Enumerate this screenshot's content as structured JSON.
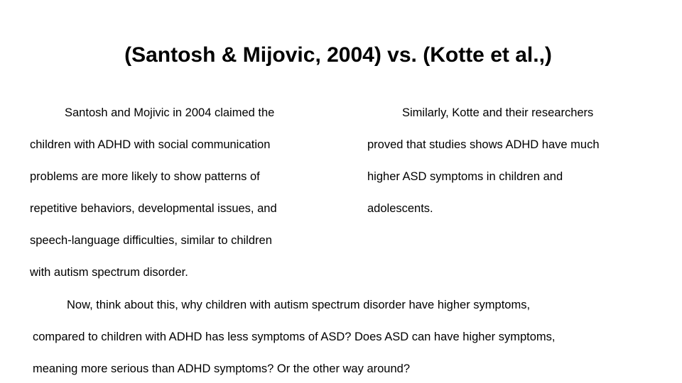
{
  "slide": {
    "title": "(Santosh & Mijovic, 2004) vs. (Kotte et al.,)",
    "left_column": {
      "lines": [
        "Santosh and Mojivic in 2004 claimed the",
        "children with ADHD with social communication",
        "problems are more likely to show patterns of",
        "repetitive behaviors, developmental issues, and",
        "speech-language difficulties, similar to children",
        "with autism spectrum disorder."
      ]
    },
    "right_column": {
      "lines": [
        "Similarly, Kotte and their researchers",
        "proved that studies shows ADHD have much",
        "higher ASD symptoms in children and",
        "adolescents."
      ]
    },
    "bottom": {
      "lines": [
        "Now, think about this, why children with autism spectrum disorder have higher symptoms,",
        "compared to children with ADHD has less symptoms of ASD? Does ASD can have higher symptoms,",
        "meaning more serious than ADHD symptoms? Or the other way around?"
      ]
    }
  }
}
